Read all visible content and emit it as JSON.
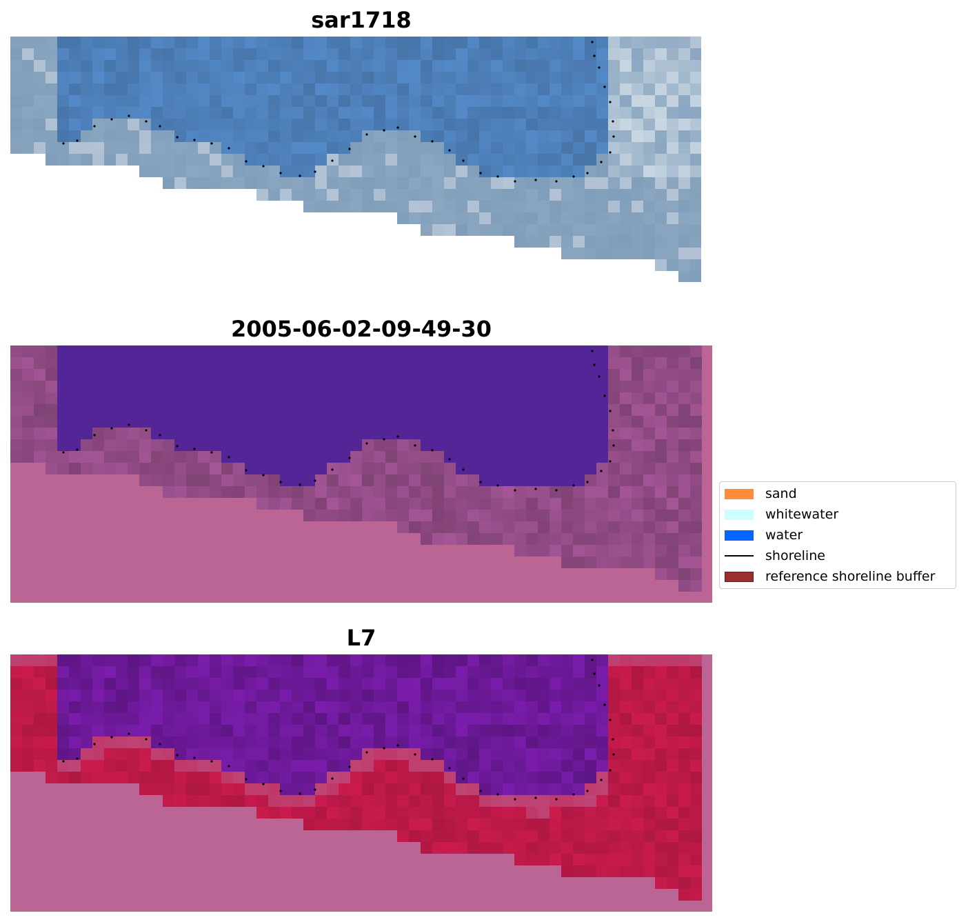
{
  "panels": [
    {
      "id": "rgb",
      "title": "sar1718",
      "style": "rgb"
    },
    {
      "id": "classified",
      "title": "2005-06-02-09-49-30",
      "style": "classified"
    },
    {
      "id": "index",
      "title": "L7",
      "style": "index"
    }
  ],
  "legend": {
    "items": [
      {
        "label": "sand",
        "color": "#ff8c3a",
        "kind": "patch"
      },
      {
        "label": "whitewater",
        "color": "#ccffff",
        "kind": "patch"
      },
      {
        "label": "water",
        "color": "#0066ff",
        "kind": "patch"
      },
      {
        "label": "shoreline",
        "color": "#000000",
        "kind": "line"
      },
      {
        "label": "reference shoreline buffer",
        "color": "#9b2f2f",
        "kind": "patch"
      }
    ]
  },
  "colors": {
    "nodata": "#ffffff",
    "water_rgb": "#4d7fb8",
    "land_rgb": "#8aa6c0",
    "classified_water": "#532596",
    "classified_buffer": "#bb6595",
    "classified_land": "#8e4a82",
    "index_water": "#6f1a9c",
    "index_land": "#c21a4a",
    "index_buffer": "#bb6595"
  }
}
